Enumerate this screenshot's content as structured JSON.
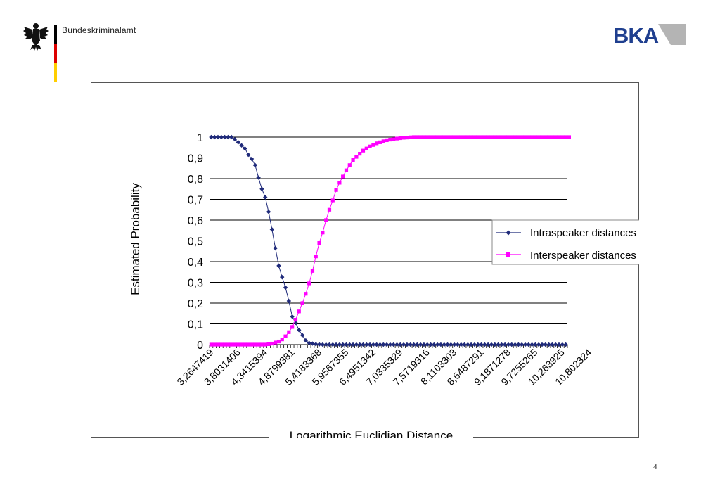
{
  "header": {
    "org_name": "Bundeskriminalamt",
    "logo_text": "BKA",
    "flag_colors": [
      "#000000",
      "#dd0000",
      "#ffce00"
    ]
  },
  "page_number": "4",
  "colors": {
    "intra": "#1f2a7a",
    "inter": "#ff00ff",
    "grid": "#000000",
    "bka_blue": "#1f3f8f",
    "bka_grey": "#b4b4b4"
  },
  "chart_data": {
    "type": "line",
    "title": "",
    "xlabel": "Logarithmic Euclidian Distance",
    "ylabel": "Estimated Probability",
    "ylim": [
      0,
      1
    ],
    "y_ticks": [
      "0",
      "0,1",
      "0,2",
      "0,3",
      "0,4",
      "0,5",
      "0,6",
      "0,7",
      "0,8",
      "0,9",
      "1"
    ],
    "grid": true,
    "legend_position": "right",
    "x_tick_labels": [
      "3,2647419",
      "3,8031406",
      "4,3415394",
      "4,8799381",
      "5,4183368",
      "5,9567355",
      "6,4951342",
      "7,0335329",
      "7,5719316",
      "8,1103303",
      "8,6487291",
      "9,1871278",
      "9,7255265",
      "10,263925",
      "10,802324"
    ],
    "x_start": 3.2647419,
    "x_step": 0.0769141,
    "series": [
      {
        "name": "Intraspeaker distances",
        "marker": "diamond",
        "values": [
          1,
          1,
          1,
          1,
          1,
          1,
          1,
          0.99,
          0.975,
          0.96,
          0.945,
          0.915,
          0.895,
          0.865,
          0.805,
          0.75,
          0.71,
          0.64,
          0.555,
          0.465,
          0.38,
          0.325,
          0.275,
          0.21,
          0.135,
          0.105,
          0.07,
          0.045,
          0.02,
          0.008,
          0.005,
          0.002,
          0.001,
          0,
          0,
          0,
          0,
          0,
          0,
          0,
          0,
          0,
          0,
          0,
          0,
          0,
          0,
          0,
          0,
          0,
          0,
          0,
          0,
          0,
          0,
          0,
          0,
          0,
          0,
          0,
          0,
          0,
          0,
          0,
          0,
          0,
          0,
          0,
          0,
          0,
          0,
          0,
          0,
          0,
          0,
          0,
          0,
          0,
          0,
          0,
          0,
          0,
          0,
          0,
          0,
          0,
          0,
          0,
          0,
          0,
          0,
          0,
          0,
          0,
          0,
          0,
          0,
          0,
          0,
          0,
          0,
          0,
          0,
          0,
          0,
          0
        ]
      },
      {
        "name": "Interspeaker distances",
        "marker": "square",
        "values": [
          0,
          0,
          0,
          0,
          0,
          0,
          0,
          0,
          0,
          0,
          0,
          0,
          0,
          0,
          0,
          0,
          0,
          0.002,
          0.005,
          0.01,
          0.015,
          0.025,
          0.04,
          0.06,
          0.085,
          0.12,
          0.16,
          0.2,
          0.245,
          0.295,
          0.355,
          0.425,
          0.49,
          0.54,
          0.6,
          0.65,
          0.695,
          0.745,
          0.78,
          0.81,
          0.84,
          0.865,
          0.89,
          0.905,
          0.92,
          0.935,
          0.945,
          0.955,
          0.962,
          0.97,
          0.975,
          0.98,
          0.985,
          0.988,
          0.99,
          0.993,
          0.995,
          0.997,
          0.998,
          0.999,
          1,
          1,
          1,
          1,
          1,
          1,
          1,
          1,
          1,
          1,
          1,
          1,
          1,
          1,
          1,
          1,
          1,
          1,
          1,
          1,
          1,
          1,
          1,
          1,
          1,
          1,
          1,
          1,
          1,
          1,
          1,
          1,
          1,
          1,
          1,
          1,
          1,
          1,
          1,
          1,
          1,
          1,
          1,
          1,
          1,
          1,
          1
        ]
      }
    ]
  }
}
